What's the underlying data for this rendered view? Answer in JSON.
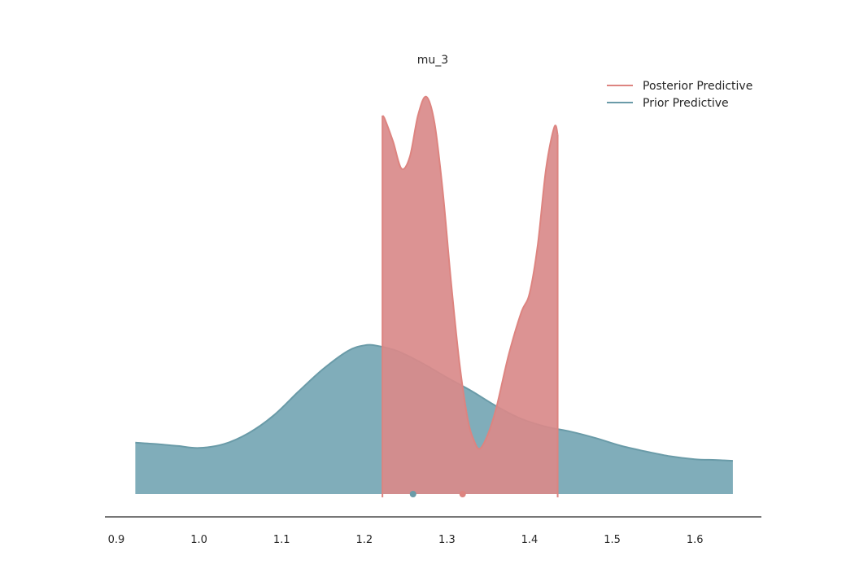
{
  "chart_data": {
    "type": "area",
    "title": "mu_3",
    "xlabel": "",
    "ylabel": "",
    "xlim": [
      0.9,
      1.65
    ],
    "x_ticks": [
      0.9,
      1.0,
      1.1,
      1.2,
      1.3,
      1.4,
      1.5,
      1.6
    ],
    "x_tick_labels": [
      "0.9",
      "1.0",
      "1.1",
      "1.2",
      "1.3",
      "1.4",
      "1.5",
      "1.6"
    ],
    "y_axis_shown": false,
    "grid": false,
    "legend_position": "top-right",
    "series": [
      {
        "name": "Posterior Predictive",
        "color": "#d98a8a",
        "line_color": "#dd8480",
        "x": [
          1.222,
          1.225,
          1.235,
          1.245,
          1.255,
          1.265,
          1.275,
          1.285,
          1.295,
          1.305,
          1.315,
          1.325,
          1.333,
          1.34,
          1.35,
          1.36,
          1.375,
          1.39,
          1.4,
          1.41,
          1.42,
          1.43,
          1.434
        ],
        "y": [
          1.0,
          0.99,
          0.93,
          0.86,
          0.89,
          1.0,
          1.05,
          0.98,
          0.8,
          0.56,
          0.35,
          0.2,
          0.14,
          0.12,
          0.16,
          0.23,
          0.37,
          0.48,
          0.53,
          0.66,
          0.86,
          0.97,
          0.95
        ]
      },
      {
        "name": "Prior Predictive",
        "color": "#79a9b6",
        "line_color": "#6a9ba8",
        "x": [
          0.923,
          0.95,
          0.975,
          1.0,
          1.03,
          1.06,
          1.09,
          1.12,
          1.15,
          1.18,
          1.2,
          1.215,
          1.24,
          1.27,
          1.3,
          1.33,
          1.36,
          1.39,
          1.42,
          1.45,
          1.48,
          1.51,
          1.54,
          1.57,
          1.6,
          1.625,
          1.646
        ],
        "y": [
          0.136,
          0.132,
          0.127,
          0.122,
          0.132,
          0.161,
          0.207,
          0.27,
          0.33,
          0.378,
          0.393,
          0.392,
          0.378,
          0.346,
          0.308,
          0.272,
          0.232,
          0.199,
          0.178,
          0.165,
          0.148,
          0.128,
          0.113,
          0.1,
          0.092,
          0.09,
          0.088
        ]
      }
    ],
    "point_estimates": [
      {
        "name": "Prior Predictive",
        "x": 1.259,
        "color": "#6a9ba8"
      },
      {
        "name": "Posterior Predictive",
        "x": 1.319,
        "color": "#dd8480"
      }
    ],
    "posterior_bounds": [
      1.222,
      1.434
    ]
  }
}
